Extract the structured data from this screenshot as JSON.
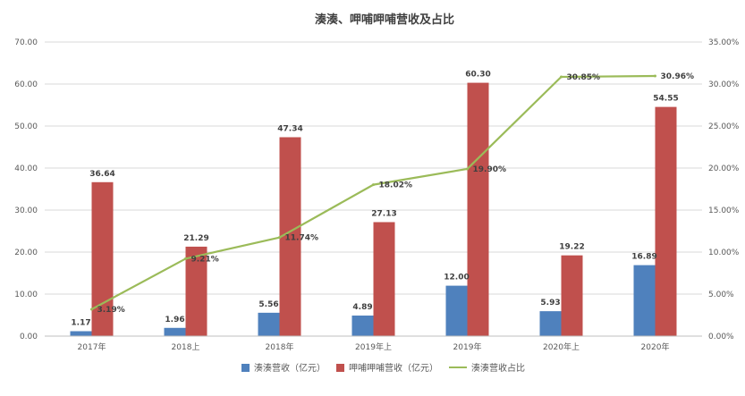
{
  "chart_data": {
    "type": "bar",
    "title": "湊湊、呷哺呷哺营收及占比",
    "categories": [
      "2017年",
      "2018上",
      "2018年",
      "2019年上",
      "2019年",
      "2020年上",
      "2020年"
    ],
    "series": [
      {
        "name": "湊湊营收（亿元）",
        "type": "bar",
        "axis": "left",
        "color": "#4F81BD",
        "values": [
          1.17,
          1.96,
          5.56,
          4.89,
          12.0,
          5.93,
          16.89
        ],
        "labels": [
          "1.17",
          "1.96",
          "5.56",
          "4.89",
          "12.00",
          "5.93",
          "16.89"
        ]
      },
      {
        "name": "呷哺呷哺营收（亿元）",
        "type": "bar",
        "axis": "left",
        "color": "#C0504D",
        "values": [
          36.64,
          21.29,
          47.34,
          27.13,
          60.3,
          19.22,
          54.55
        ],
        "labels": [
          "36.64",
          "21.29",
          "47.34",
          "27.13",
          "60.30",
          "19.22",
          "54.55"
        ]
      },
      {
        "name": "湊湊营收占比",
        "type": "line",
        "axis": "right",
        "color": "#9BBB59",
        "values": [
          3.19,
          9.21,
          11.74,
          18.02,
          19.9,
          30.85,
          30.96
        ],
        "labels": [
          "3.19%",
          "9.21%",
          "11.74%",
          "18.02%",
          "19.90%",
          "30.85%",
          "30.96%"
        ]
      }
    ],
    "ylim": [
      0,
      70
    ],
    "y2lim": [
      0,
      35
    ],
    "y_ticks": [
      "0.00",
      "10.00",
      "20.00",
      "30.00",
      "40.00",
      "50.00",
      "60.00",
      "70.00"
    ],
    "y2_ticks": [
      "0.00%",
      "5.00%",
      "10.00%",
      "15.00%",
      "20.00%",
      "25.00%",
      "30.00%",
      "35.00%"
    ],
    "grid": true,
    "legend": "bottom"
  }
}
